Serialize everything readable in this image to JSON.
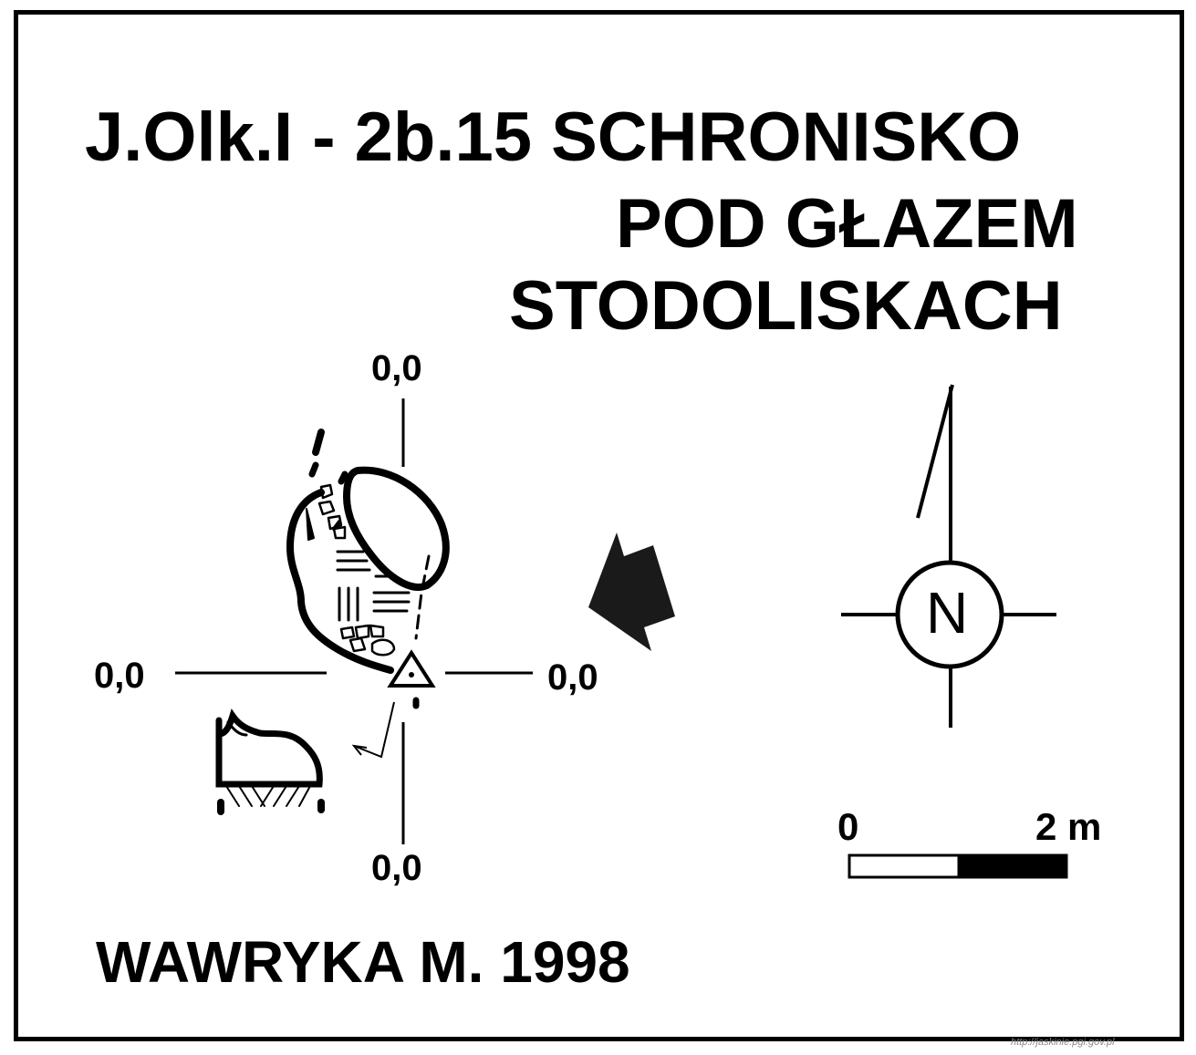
{
  "title": {
    "line1": "J.Olk.I - 2b.15  SCHRONISKO",
    "line2": "POD GŁAZEM",
    "line3": "STODOLISKACH"
  },
  "datum": {
    "top": "0,0",
    "left": "0,0",
    "right": "0,0",
    "bottom": "0,0"
  },
  "north": {
    "label": "N"
  },
  "scale": {
    "start": "0",
    "end": "2 m"
  },
  "author": "WAWRYKA M. 1998",
  "watermark": "http://jaskinie.pgi.gov.pl"
}
